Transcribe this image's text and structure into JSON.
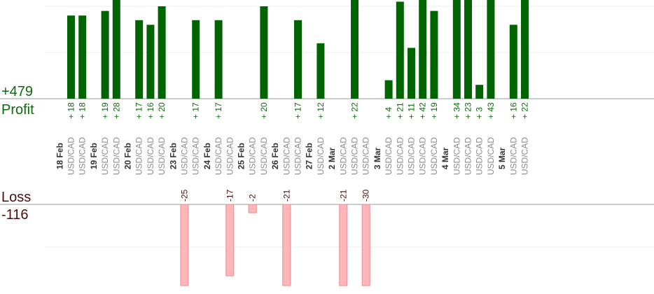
{
  "chart_data": {
    "type": "bar",
    "profit_label": "Profit",
    "profit_total": "+479",
    "loss_label": "Loss",
    "loss_total": "-116",
    "colors": {
      "profit_bar": "#006400",
      "profit_text": "#0b6a0b",
      "loss_fill": "#ffb6b9",
      "loss_stroke": "#e88a8f",
      "loss_text": "#4a0d0d",
      "pair_text": "#8c8c8c",
      "date_text": "#333333",
      "grid": "#eeeeee",
      "axis": "#999999"
    },
    "days": [
      {
        "date": "18 Feb",
        "trades": [
          {
            "pair": "USD/CAD",
            "label": "+ 18",
            "value": 18
          },
          {
            "pair": "USD/CAD",
            "label": "+ 18",
            "value": 18
          }
        ]
      },
      {
        "date": "19 Feb",
        "trades": [
          {
            "pair": "USD/CAD",
            "label": "+ 19",
            "value": 19
          },
          {
            "pair": "USD/CAD",
            "label": "+ 28",
            "value": 28
          }
        ]
      },
      {
        "date": "20 Feb",
        "trades": [
          {
            "pair": "USD/CAD",
            "label": "+ 17",
            "value": 17
          },
          {
            "pair": "USD/CAD",
            "label": "+ 16",
            "value": 16
          },
          {
            "pair": "USD/CAD",
            "label": "+ 20",
            "value": 20
          }
        ]
      },
      {
        "date": "23 Feb",
        "trades": [
          {
            "pair": "USD/CAD",
            "label": "-25",
            "value": -25
          },
          {
            "pair": "USD/CAD",
            "label": "+ 17",
            "value": 17
          }
        ]
      },
      {
        "date": "24 Feb",
        "trades": [
          {
            "pair": "USD/CAD",
            "label": "+ 17",
            "value": 17
          },
          {
            "pair": "USD/CAD",
            "label": "-17",
            "value": -17
          }
        ]
      },
      {
        "date": "25 Feb",
        "trades": [
          {
            "pair": "USD/CAD",
            "label": "-2",
            "value": -2
          },
          {
            "pair": "USD/CAD",
            "label": "+ 20",
            "value": 20
          }
        ]
      },
      {
        "date": "26 Feb",
        "trades": [
          {
            "pair": "USD/CAD",
            "label": "-21",
            "value": -21
          },
          {
            "pair": "USD/CAD",
            "label": "+ 17",
            "value": 17
          }
        ]
      },
      {
        "date": "27 Feb",
        "trades": [
          {
            "pair": "USD/CAD",
            "label": "+ 12",
            "value": 12
          }
        ]
      },
      {
        "date": "2 Mar",
        "trades": [
          {
            "pair": "USD/CAD",
            "label": "-21",
            "value": -21
          },
          {
            "pair": "USD/CAD",
            "label": "+ 22",
            "value": 22
          },
          {
            "pair": "USD/CAD",
            "label": "-30",
            "value": -30
          }
        ]
      },
      {
        "date": "3 Mar",
        "trades": [
          {
            "pair": "USD/CAD",
            "label": "+ 4",
            "value": 4
          },
          {
            "pair": "USD/CAD",
            "label": "+ 21",
            "value": 21
          },
          {
            "pair": "USD/CAD",
            "label": "+ 11",
            "value": 11
          },
          {
            "pair": "USD/CAD",
            "label": "+ 42",
            "value": 42
          },
          {
            "pair": "USD/CAD",
            "label": "+ 19",
            "value": 19
          }
        ]
      },
      {
        "date": "4 Mar",
        "trades": [
          {
            "pair": "USD/CAD",
            "label": "+ 34",
            "value": 34
          },
          {
            "pair": "USD/CAD",
            "label": "+ 23",
            "value": 23
          },
          {
            "pair": "USD/CAD",
            "label": "+ 3",
            "value": 3
          },
          {
            "pair": "USD/CAD",
            "label": "+ 43",
            "value": 43
          }
        ]
      },
      {
        "date": "5 Mar",
        "trades": [
          {
            "pair": "USD/CAD",
            "label": "+ 16",
            "value": 16
          },
          {
            "pair": "USD/CAD",
            "label": "+ 22",
            "value": 22
          }
        ]
      }
    ]
  }
}
